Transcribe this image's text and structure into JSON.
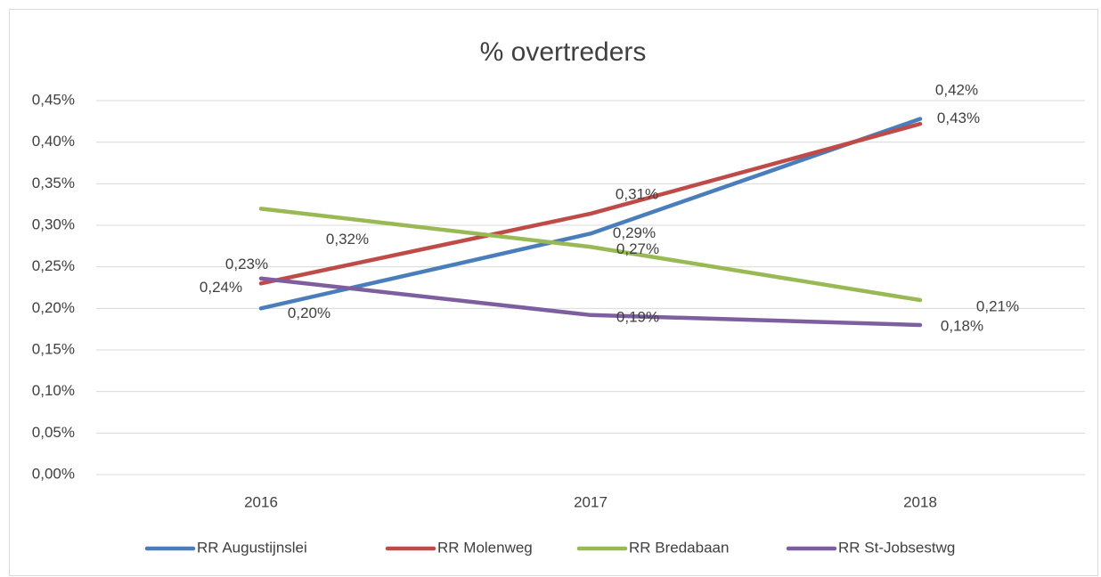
{
  "chart_data": {
    "type": "line",
    "title": "% overtreders",
    "categories": [
      "2016",
      "2017",
      "2018"
    ],
    "series": [
      {
        "name": "RR Augustijnslei",
        "color": "#4a7ebb",
        "values": [
          0.2,
          0.29,
          0.428
        ],
        "value_labels": [
          "0,20%",
          "0,29%",
          "0,43%"
        ]
      },
      {
        "name": "RR Molenweg",
        "color": "#be4b48",
        "values": [
          0.23,
          0.314,
          0.422
        ],
        "value_labels": [
          "0,23%",
          "0,31%",
          "0,42%"
        ]
      },
      {
        "name": "RR Bredabaan",
        "color": "#98b954",
        "values": [
          0.32,
          0.274,
          0.21
        ],
        "value_labels": [
          "0,32%",
          "0,27%",
          "0,21%"
        ]
      },
      {
        "name": "RR St-Jobsestwg",
        "color": "#7d5fa0",
        "values": [
          0.236,
          0.192,
          0.18
        ],
        "value_labels": [
          "0,24%",
          "0,19%",
          "0,18%"
        ]
      }
    ],
    "ylim": [
      0,
      0.45
    ],
    "yticks": [
      {
        "value": 0,
        "label": "0,00%"
      },
      {
        "value": 0.05,
        "label": "0,05%"
      },
      {
        "value": 0.1,
        "label": "0,10%"
      },
      {
        "value": 0.15,
        "label": "0,15%"
      },
      {
        "value": 0.2,
        "label": "0,20%"
      },
      {
        "value": 0.25,
        "label": "0,25%"
      },
      {
        "value": 0.3,
        "label": "0,30%"
      },
      {
        "value": 0.35,
        "label": "0,35%"
      },
      {
        "value": 0.4,
        "label": "0,40%"
      },
      {
        "value": 0.45,
        "label": "0,45%"
      }
    ],
    "grid": true,
    "legend": "bottom"
  }
}
